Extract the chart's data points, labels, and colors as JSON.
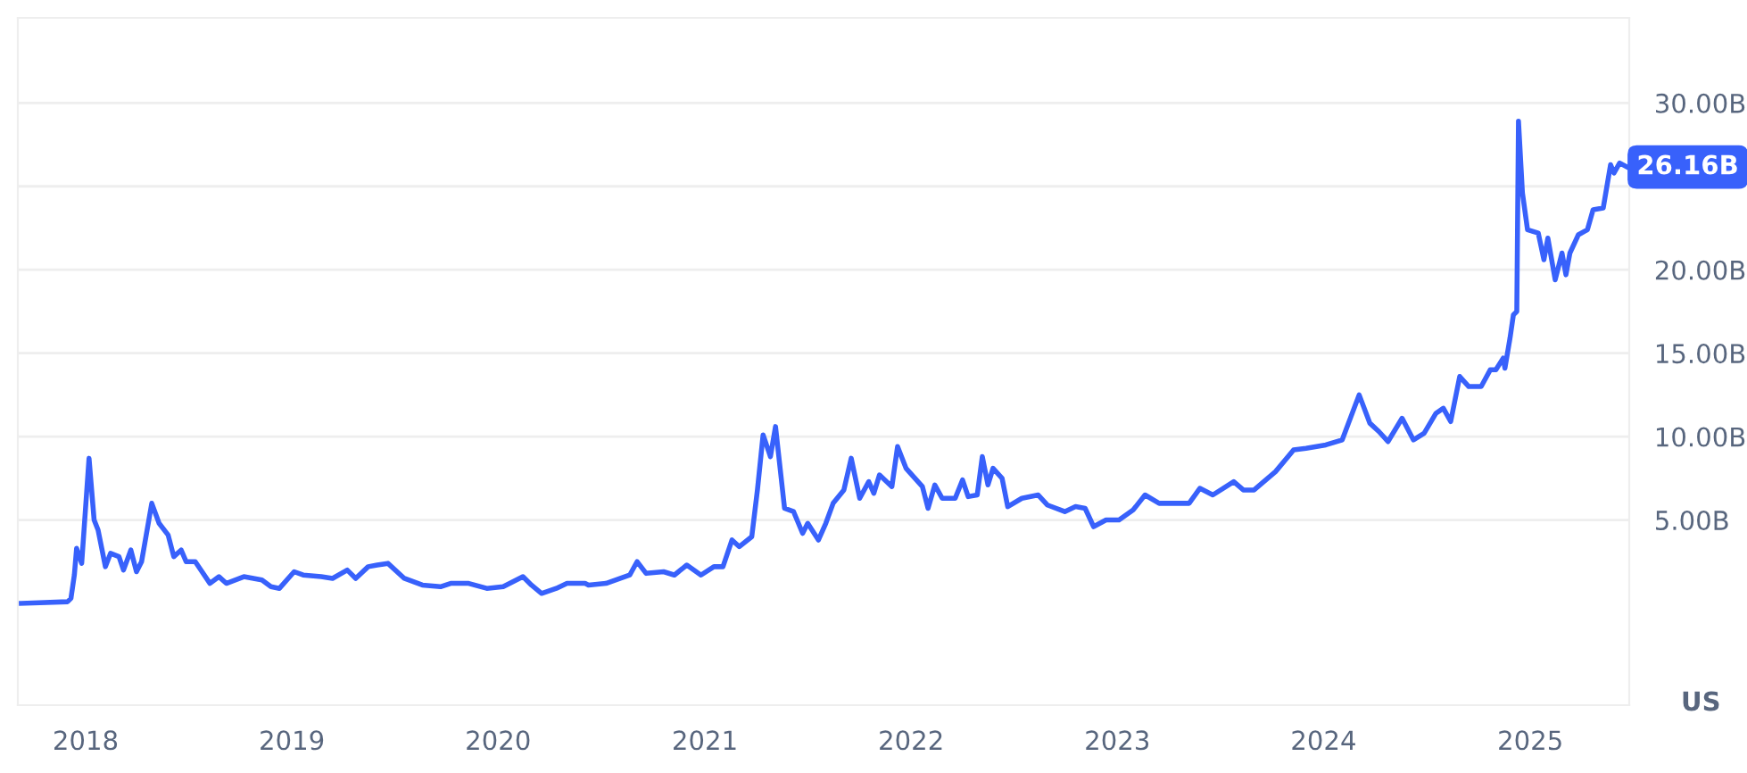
{
  "chart_data": {
    "type": "line",
    "annotations": [
      "26.16B",
      "US"
    ],
    "x": [
      "2017-09-09",
      "2017-11-30",
      "2017-12-06",
      "2017-12-12",
      "2017-12-16",
      "2017-12-25",
      "2018-01-07",
      "2018-01-16",
      "2018-01-23",
      "2018-02-05",
      "2018-02-14",
      "2018-03-01",
      "2018-03-09",
      "2018-03-22",
      "2018-04-01",
      "2018-04-10",
      "2018-04-28",
      "2018-05-11",
      "2018-05-27",
      "2018-06-06",
      "2018-06-19",
      "2018-06-28",
      "2018-07-14",
      "2018-08-09",
      "2018-08-25",
      "2018-09-07",
      "2018-10-08",
      "2018-11-09",
      "2018-11-25",
      "2018-12-10",
      "2019-01-05",
      "2019-01-21",
      "2019-02-22",
      "2019-03-14",
      "2019-04-09",
      "2019-04-24",
      "2019-05-16",
      "2019-06-01",
      "2019-06-20",
      "2019-07-19",
      "2019-08-20",
      "2019-09-21",
      "2019-10-09",
      "2019-11-10",
      "2019-12-12",
      "2020-01-10",
      "2020-02-14",
      "2020-02-29",
      "2020-03-18",
      "2020-04-13",
      "2020-05-02",
      "2020-06-03",
      "2020-06-09",
      "2020-07-10",
      "2020-08-21",
      "2020-09-03",
      "2020-09-19",
      "2020-10-20",
      "2020-11-08",
      "2020-11-30",
      "2020-12-25",
      "2021-01-17",
      "2021-02-02",
      "2021-02-18",
      "2021-03-03",
      "2021-03-25",
      "2021-04-04",
      "2021-04-14",
      "2021-04-27",
      "2021-05-06",
      "2021-05-22",
      "2021-06-07",
      "2021-06-23",
      "2021-07-02",
      "2021-07-21",
      "2021-08-03",
      "2021-08-16",
      "2021-09-04",
      "2021-09-17",
      "2021-10-02",
      "2021-10-18",
      "2021-10-27",
      "2021-11-06",
      "2021-11-28",
      "2021-12-08",
      "2021-12-23",
      "2022-01-21",
      "2022-01-31",
      "2022-02-12",
      "2022-02-25",
      "2022-03-20",
      "2022-04-02",
      "2022-04-12",
      "2022-04-28",
      "2022-05-07",
      "2022-05-17",
      "2022-05-26",
      "2022-06-11",
      "2022-06-21",
      "2022-07-16",
      "2022-08-14",
      "2022-08-30",
      "2022-09-30",
      "2022-10-19",
      "2022-11-05",
      "2022-11-20",
      "2022-12-12",
      "2023-01-04",
      "2023-01-29",
      "2023-02-19",
      "2023-03-16",
      "2023-04-10",
      "2023-05-08",
      "2023-05-27",
      "2023-06-19",
      "2023-07-26",
      "2023-08-12",
      "2023-08-31",
      "2023-10-08",
      "2023-11-09",
      "2023-12-01",
      "2024-01-05",
      "2024-02-03",
      "2024-03-04",
      "2024-03-23",
      "2024-04-08",
      "2024-04-24",
      "2024-05-19",
      "2024-06-08",
      "2024-06-27",
      "2024-07-18",
      "2024-07-31",
      "2024-08-13",
      "2024-08-29",
      "2024-09-14",
      "2024-10-06",
      "2024-10-22",
      "2024-11-01",
      "2024-11-14",
      "2024-11-17",
      "2024-11-26",
      "2024-12-02",
      "2024-12-08",
      "2024-12-11",
      "2024-12-18",
      "2024-12-27",
      "2025-01-15",
      "2025-01-25",
      "2025-02-01",
      "2025-02-14",
      "2025-02-26",
      "2025-03-05",
      "2025-03-12",
      "2025-03-27",
      "2025-04-12",
      "2025-04-22",
      "2025-05-10",
      "2025-05-23",
      "2025-05-29",
      "2025-06-08",
      "2025-06-21"
    ],
    "series": [
      {
        "color": "#3861fb",
        "values": [
          0.0,
          0.1,
          0.3,
          1.7,
          3.3,
          2.4,
          8.7,
          5.0,
          4.4,
          2.2,
          3.0,
          2.8,
          2.0,
          3.2,
          1.9,
          2.5,
          6.0,
          4.8,
          4.1,
          2.8,
          3.2,
          2.5,
          2.5,
          1.2,
          1.6,
          1.2,
          1.6,
          1.4,
          1.0,
          0.9,
          1.9,
          1.7,
          1.6,
          1.5,
          2.0,
          1.5,
          2.2,
          2.3,
          2.4,
          1.5,
          1.1,
          1.0,
          1.2,
          1.2,
          0.9,
          1.0,
          1.6,
          1.1,
          0.6,
          0.9,
          1.2,
          1.2,
          1.1,
          1.2,
          1.7,
          2.5,
          1.8,
          1.9,
          1.7,
          2.3,
          1.7,
          2.2,
          2.2,
          3.8,
          3.4,
          4.0,
          6.8,
          10.1,
          8.8,
          10.6,
          5.7,
          5.5,
          4.2,
          4.8,
          3.8,
          4.8,
          6.0,
          6.8,
          8.7,
          6.3,
          7.3,
          6.6,
          7.7,
          7.0,
          9.4,
          8.1,
          7.0,
          5.7,
          7.1,
          6.3,
          6.3,
          7.4,
          6.4,
          6.5,
          8.8,
          7.1,
          8.1,
          7.5,
          5.8,
          6.3,
          6.5,
          5.9,
          5.5,
          5.8,
          5.7,
          4.6,
          5.0,
          5.0,
          5.6,
          6.5,
          6.0,
          6.0,
          6.0,
          6.9,
          6.5,
          7.3,
          6.8,
          6.8,
          7.9,
          9.2,
          9.3,
          9.5,
          9.8,
          12.5,
          10.8,
          10.3,
          9.7,
          11.1,
          9.8,
          10.2,
          11.4,
          11.7,
          10.9,
          13.6,
          13.0,
          13.0,
          14.0,
          14.0,
          14.7,
          14.1,
          15.9,
          17.3,
          17.5,
          28.9,
          24.6,
          22.4,
          22.2,
          20.6,
          21.9,
          19.4,
          21.0,
          19.7,
          21.0,
          22.1,
          22.4,
          23.6,
          23.7,
          26.3,
          25.8,
          26.4,
          26.16
        ]
      }
    ],
    "xlim": [
      "2017-09-03",
      "2025-06-25"
    ],
    "xticks": [
      {
        "value": "2018-01-01",
        "label": "2018"
      },
      {
        "value": "2019-01-01",
        "label": "2019"
      },
      {
        "value": "2020-01-01",
        "label": "2020"
      },
      {
        "value": "2021-01-01",
        "label": "2021"
      },
      {
        "value": "2022-01-01",
        "label": "2022"
      },
      {
        "value": "2023-01-01",
        "label": "2023"
      },
      {
        "value": "2024-01-01",
        "label": "2024"
      },
      {
        "value": "2025-01-01",
        "label": "2025"
      }
    ],
    "ylim": [
      -6.1,
      35.1
    ],
    "yticks": [
      {
        "value": 5,
        "label": "5.00B"
      },
      {
        "value": 10,
        "label": "10.00B"
      },
      {
        "value": 15,
        "label": "15.00B"
      },
      {
        "value": 20,
        "label": "20.00B"
      },
      {
        "value": 25,
        "label": null
      },
      {
        "value": 30,
        "label": "30.00B"
      }
    ],
    "grid": "y",
    "line_style": "solid",
    "marker": "none"
  }
}
